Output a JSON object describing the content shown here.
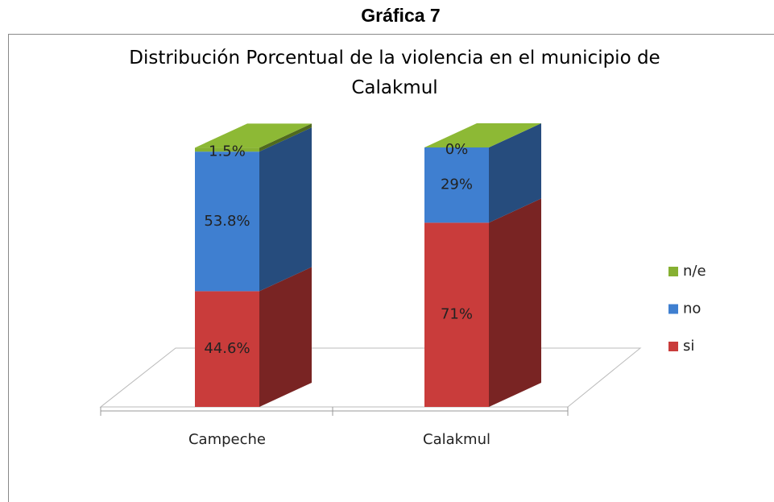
{
  "heading": "Gráfica 7",
  "chart_data": {
    "type": "bar3d_stacked",
    "title": "Distribución Porcentual de la violencia en el municipio de Calakmul",
    "categories": [
      "Campeche",
      "Calakmul"
    ],
    "series": [
      {
        "name": "si",
        "color": "#c93c3b",
        "values": [
          44.6,
          71
        ],
        "value_labels": [
          "44.6%",
          "71%"
        ]
      },
      {
        "name": "no",
        "color": "#3f7fd0",
        "values": [
          53.8,
          29
        ],
        "value_labels": [
          "53.8%",
          "29%"
        ]
      },
      {
        "name": "n/e",
        "color": "#86b032",
        "values": [
          1.5,
          0
        ],
        "value_labels": [
          "1.5%",
          "0%"
        ]
      }
    ],
    "ylim": [
      0,
      100
    ],
    "legend": "right"
  }
}
